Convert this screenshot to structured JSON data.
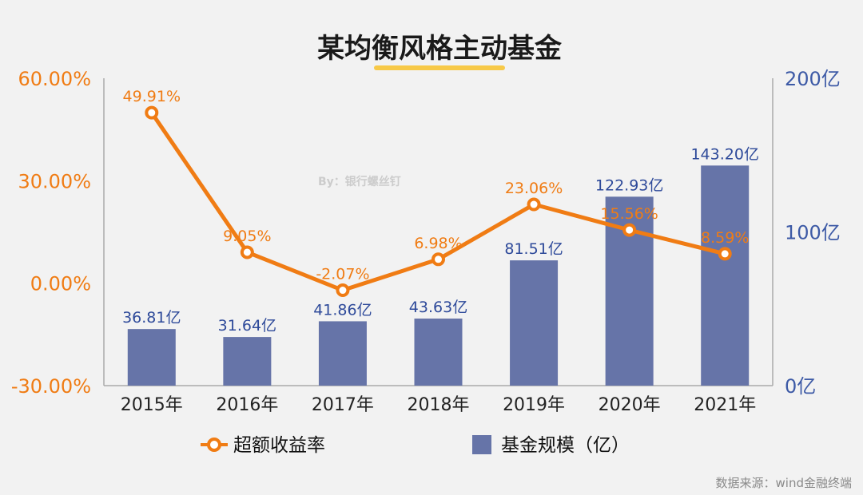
{
  "chart_data": {
    "type": "bar",
    "title": "某均衡风格主动基金",
    "categories": [
      "2015年",
      "2016年",
      "2017年",
      "2018年",
      "2019年",
      "2020年",
      "2021年"
    ],
    "series": [
      {
        "name": "基金规模（亿）",
        "type": "bar",
        "axis": "right",
        "values": [
          36.81,
          31.64,
          41.86,
          43.63,
          81.51,
          122.93,
          143.2
        ],
        "labels": [
          "36.81亿",
          "31.64亿",
          "41.86亿",
          "43.63亿",
          "81.51亿",
          "122.93亿",
          "143.20亿"
        ]
      },
      {
        "name": "超额收益率",
        "type": "line",
        "axis": "left",
        "values": [
          49.91,
          9.05,
          -2.07,
          6.98,
          23.06,
          15.56,
          8.59
        ],
        "labels": [
          "49.91%",
          "9.05%",
          "-2.07%",
          "6.98%",
          "23.06%",
          "15.56%",
          "8.59%"
        ]
      }
    ],
    "y_left": {
      "ylim": [
        -30,
        60
      ],
      "ticks": [
        -30,
        0,
        30,
        60
      ],
      "tick_labels": [
        "-30.00%",
        "0.00%",
        "30.00%",
        "60.00%"
      ]
    },
    "y_right": {
      "ylim": [
        0,
        200
      ],
      "ticks": [
        0,
        100,
        200
      ],
      "tick_labels": [
        "0亿",
        "100亿",
        "200亿"
      ]
    },
    "legend": {
      "position": "bottom",
      "items": [
        "超额收益率",
        "基金规模（亿）"
      ]
    },
    "grid": false
  },
  "watermark": "By：银行螺丝钉",
  "source": "数据来源：wind金融终端",
  "colors": {
    "bar": "#6674a8",
    "line": "#f07c14",
    "left_axis_text": "#f07c14",
    "right_axis_text": "#3d5aa6",
    "title_underline": "#f7c948",
    "axis_line": "#aaaaaa",
    "background": "#f2f2f2"
  }
}
